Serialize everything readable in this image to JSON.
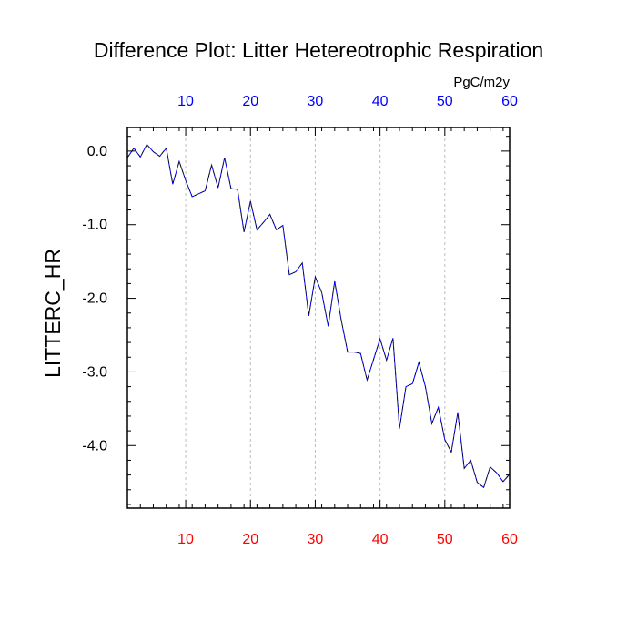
{
  "page": {
    "background": "#ffffff"
  },
  "chart_data": {
    "type": "line",
    "title": "Difference Plot: Litter Hetereotrophic Respiration",
    "units_label": "PgC/m2y",
    "xlabel": "",
    "ylabel": "LITTERC_HR",
    "xlim": [
      1,
      60
    ],
    "ylim": [
      -4.85,
      0.32
    ],
    "x_ticks": [
      10,
      20,
      30,
      40,
      50,
      60
    ],
    "x_tick_labels": [
      "10",
      "20",
      "30",
      "40",
      "50",
      "60"
    ],
    "y_ticks": [
      0,
      -1,
      -2,
      -3,
      -4
    ],
    "y_tick_labels": [
      "0.0",
      "-1.0",
      "-2.0",
      "-3.0",
      "-4.0"
    ],
    "grid": "vertical dashed at x ticks",
    "top_axis_color": "#0000ff",
    "bottom_axis_color": "#ff0000",
    "series": [
      {
        "color_primary": "#0000ff",
        "color_secondary": "#000000",
        "style": "dashed",
        "x": [
          1,
          2,
          3,
          4,
          5,
          6,
          7,
          8,
          9,
          10,
          11,
          12,
          13,
          14,
          15,
          16,
          17,
          18,
          19,
          20,
          21,
          22,
          23,
          24,
          25,
          26,
          27,
          28,
          29,
          30,
          31,
          32,
          33,
          34,
          35,
          36,
          37,
          38,
          39,
          40,
          41,
          42,
          43,
          44,
          45,
          46,
          47,
          48,
          49,
          50,
          51,
          52,
          53,
          54,
          55,
          56,
          57,
          58,
          59,
          60
        ],
        "values": [
          -0.09,
          0.04,
          -0.08,
          0.09,
          -0.01,
          -0.07,
          0.04,
          -0.45,
          -0.14,
          -0.4,
          -0.62,
          -0.58,
          -0.54,
          -0.19,
          -0.5,
          -0.09,
          -0.51,
          -0.52,
          -1.1,
          -0.68,
          -1.07,
          -0.97,
          -0.86,
          -1.07,
          -1.01,
          -1.68,
          -1.64,
          -1.52,
          -2.24,
          -1.71,
          -1.92,
          -2.38,
          -1.77,
          -2.29,
          -2.73,
          -2.73,
          -2.75,
          -3.11,
          -2.83,
          -2.55,
          -2.84,
          -2.54,
          -3.77,
          -3.2,
          -3.16,
          -2.87,
          -3.2,
          -3.7,
          -3.48,
          -3.92,
          -4.09,
          -3.55,
          -4.31,
          -4.2,
          -4.5,
          -4.57,
          -4.29,
          -4.37,
          -4.49,
          -4.39
        ]
      }
    ]
  }
}
